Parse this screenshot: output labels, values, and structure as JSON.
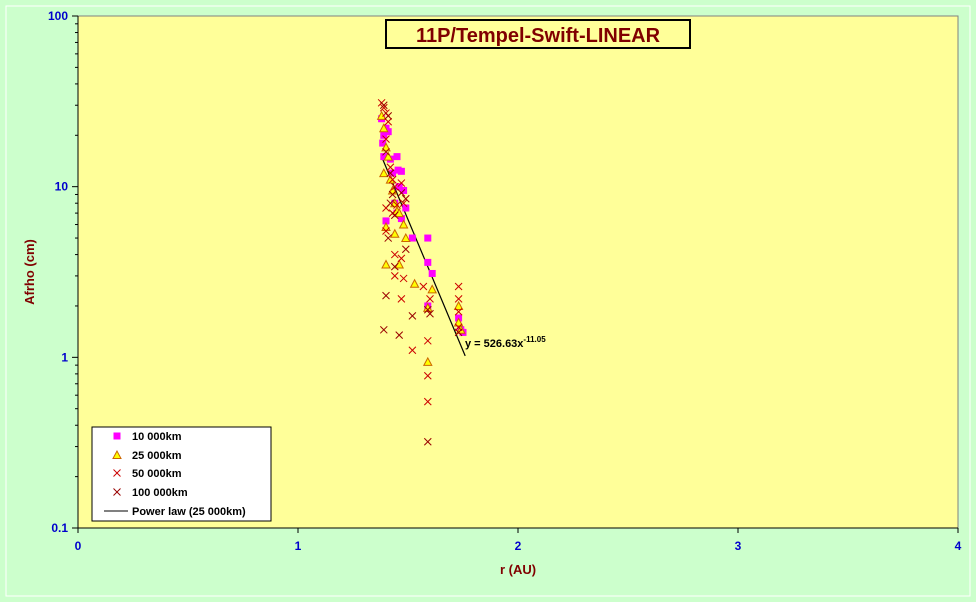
{
  "chart_data": {
    "type": "scatter",
    "title": "11P/Tempel-Swift-LINEAR",
    "xlabel": "r (AU)",
    "ylabel": "Afrho (cm)",
    "xlim": [
      0,
      4
    ],
    "ylim": [
      0.1,
      100
    ],
    "y_scale": "log",
    "x_ticks": [
      "0",
      "1",
      "2",
      "3",
      "4"
    ],
    "y_ticks": [
      "0.1",
      "1",
      "10",
      "100"
    ],
    "grid": false,
    "legend_position": "bottom-left",
    "colors": {
      "plot_bg": "#ffff99",
      "page_bg": "#ccffcc",
      "s10000": "#ff00ff",
      "s25000": "#cc6600",
      "s50000": "#cc0000",
      "s100000": "#990000",
      "fit": "#000000"
    },
    "series": [
      {
        "name": "10 000km",
        "marker": "square",
        "points": [
          [
            1.38,
            25
          ],
          [
            1.39,
            20
          ],
          [
            1.385,
            18
          ],
          [
            1.39,
            15
          ],
          [
            1.4,
            22
          ],
          [
            1.41,
            21
          ],
          [
            1.42,
            14.5
          ],
          [
            1.43,
            12
          ],
          [
            1.45,
            15
          ],
          [
            1.455,
            12.5
          ],
          [
            1.46,
            10
          ],
          [
            1.47,
            12.3
          ],
          [
            1.48,
            9.5
          ],
          [
            1.44,
            8
          ],
          [
            1.45,
            7
          ],
          [
            1.47,
            6.5
          ],
          [
            1.49,
            7.5
          ],
          [
            1.4,
            6.3
          ],
          [
            1.52,
            5
          ],
          [
            1.59,
            5
          ],
          [
            1.59,
            3.6
          ],
          [
            1.61,
            3.1
          ],
          [
            1.59,
            2
          ],
          [
            1.73,
            1.7
          ],
          [
            1.74,
            1.45
          ],
          [
            1.75,
            1.4
          ]
        ]
      },
      {
        "name": "25 000km",
        "marker": "triangle",
        "points": [
          [
            1.38,
            26
          ],
          [
            1.39,
            22
          ],
          [
            1.4,
            17
          ],
          [
            1.41,
            15
          ],
          [
            1.39,
            12
          ],
          [
            1.42,
            11
          ],
          [
            1.43,
            9.5
          ],
          [
            1.44,
            8
          ],
          [
            1.45,
            7.2
          ],
          [
            1.46,
            7
          ],
          [
            1.48,
            6
          ],
          [
            1.4,
            5.8
          ],
          [
            1.44,
            5.3
          ],
          [
            1.49,
            5
          ],
          [
            1.46,
            3.5
          ],
          [
            1.4,
            3.5
          ],
          [
            1.53,
            2.7
          ],
          [
            1.61,
            2.5
          ],
          [
            1.59,
            1.95
          ],
          [
            1.73,
            2
          ],
          [
            1.73,
            1.6
          ],
          [
            1.74,
            1.45
          ],
          [
            1.59,
            0.94
          ]
        ]
      },
      {
        "name": "50 000km",
        "marker": "x",
        "points": [
          [
            1.38,
            31
          ],
          [
            1.39,
            29
          ],
          [
            1.4,
            27
          ],
          [
            1.41,
            24
          ],
          [
            1.4,
            19
          ],
          [
            1.42,
            13
          ],
          [
            1.43,
            11
          ],
          [
            1.44,
            10
          ],
          [
            1.47,
            10.5
          ],
          [
            1.48,
            8
          ],
          [
            1.45,
            7.8
          ],
          [
            1.4,
            7.5
          ],
          [
            1.43,
            7
          ],
          [
            1.4,
            5.5
          ],
          [
            1.44,
            4
          ],
          [
            1.47,
            3.8
          ],
          [
            1.44,
            3
          ],
          [
            1.48,
            2.9
          ],
          [
            1.57,
            2.6
          ],
          [
            1.6,
            2.2
          ],
          [
            1.73,
            2.6
          ],
          [
            1.73,
            2.2
          ],
          [
            1.47,
            2.2
          ],
          [
            1.73,
            1.85
          ],
          [
            1.73,
            1.5
          ],
          [
            1.59,
            1.25
          ],
          [
            1.52,
            1.1
          ],
          [
            1.59,
            0.78
          ],
          [
            1.59,
            0.55
          ]
        ]
      },
      {
        "name": "100 000km",
        "marker": "x",
        "points": [
          [
            1.39,
            30
          ],
          [
            1.41,
            26
          ],
          [
            1.4,
            16
          ],
          [
            1.42,
            12
          ],
          [
            1.43,
            9
          ],
          [
            1.47,
            9.2
          ],
          [
            1.49,
            8.5
          ],
          [
            1.42,
            8
          ],
          [
            1.44,
            6.8
          ],
          [
            1.41,
            5
          ],
          [
            1.49,
            4.3
          ],
          [
            1.44,
            3.4
          ],
          [
            1.52,
            1.75
          ],
          [
            1.59,
            1.9
          ],
          [
            1.6,
            1.8
          ],
          [
            1.4,
            2.3
          ],
          [
            1.39,
            1.45
          ],
          [
            1.46,
            1.35
          ],
          [
            1.59,
            0.32
          ],
          [
            1.73,
            1.4
          ]
        ]
      }
    ],
    "fit": {
      "name": "Power law (25 000km)",
      "equation_text": "y = 526.63x",
      "exponent_text": "-11.05",
      "coefficient": 526.63,
      "exponent": -11.05,
      "x_range": [
        1.38,
        1.76
      ]
    }
  }
}
